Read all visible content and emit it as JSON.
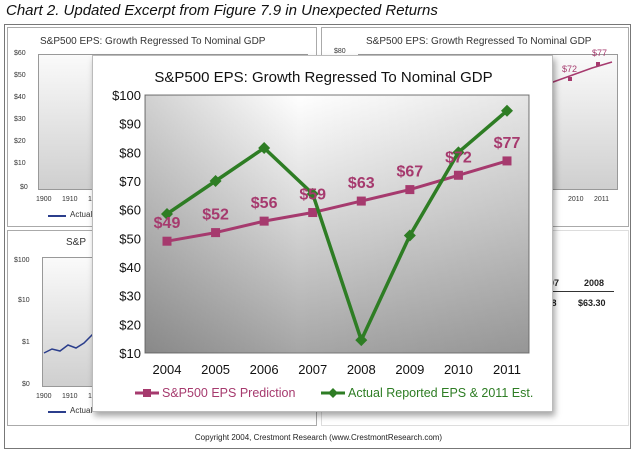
{
  "page": {
    "caption": "Chart 2. Updated Excerpt from Figure 7.9 in Unexpected Returns",
    "copyright": "Copyright 2004, Crestmont Research (www.CrestmontResearch.com)"
  },
  "background_charts": {
    "top_left": {
      "title": "S&P500 EPS: Growth Regressed To Nominal GDP",
      "y_ticks": [
        "$60",
        "$50",
        "$40",
        "$30",
        "$20",
        "$10",
        "$0"
      ],
      "x_ticks": [
        "1900",
        "1910",
        "19"
      ],
      "legend_fragment": "Actual"
    },
    "top_right": {
      "title": "S&P500 EPS: Growth Regressed To Nominal GDP",
      "y_ticks": [
        "$80"
      ],
      "x_ticks": [
        "2010",
        "2011"
      ],
      "labels": [
        "$72",
        "$77"
      ]
    },
    "bottom_left": {
      "title": "S&P",
      "y_ticks": [
        "$100",
        "$10",
        "$1",
        "$0"
      ],
      "x_ticks": [
        "1900",
        "1910",
        "1"
      ],
      "legend_fragment": "Actual"
    },
    "bottom_right": {
      "headers": [
        "007",
        "2008"
      ],
      "values": [
        ".38",
        "$63.30"
      ]
    }
  },
  "chart_data": {
    "type": "line",
    "title": "S&P500 EPS: Growth Regressed To Nominal GDP",
    "categories": [
      "2004",
      "2005",
      "2006",
      "2007",
      "2008",
      "2009",
      "2010",
      "2011"
    ],
    "y_ticks": [
      "$100",
      "$90",
      "$80",
      "$70",
      "$60",
      "$50",
      "$40",
      "$30",
      "$20",
      "$10"
    ],
    "ylim": [
      10,
      100
    ],
    "grid": false,
    "legend_position": "bottom",
    "series": [
      {
        "name": "S&P500 EPS Prediction",
        "color": "#a63a6e",
        "values": [
          49,
          52,
          56,
          59,
          63,
          67,
          72,
          77
        ],
        "data_labels": [
          "$49",
          "$52",
          "$56",
          "$59",
          "$63",
          "$67",
          "$72",
          "$77"
        ]
      },
      {
        "name": "Actual Reported EPS & 2011 Est.",
        "color": "#2e7d24",
        "values": [
          58.5,
          70,
          81.5,
          65.5,
          14.5,
          51,
          80,
          94.5
        ]
      }
    ]
  }
}
